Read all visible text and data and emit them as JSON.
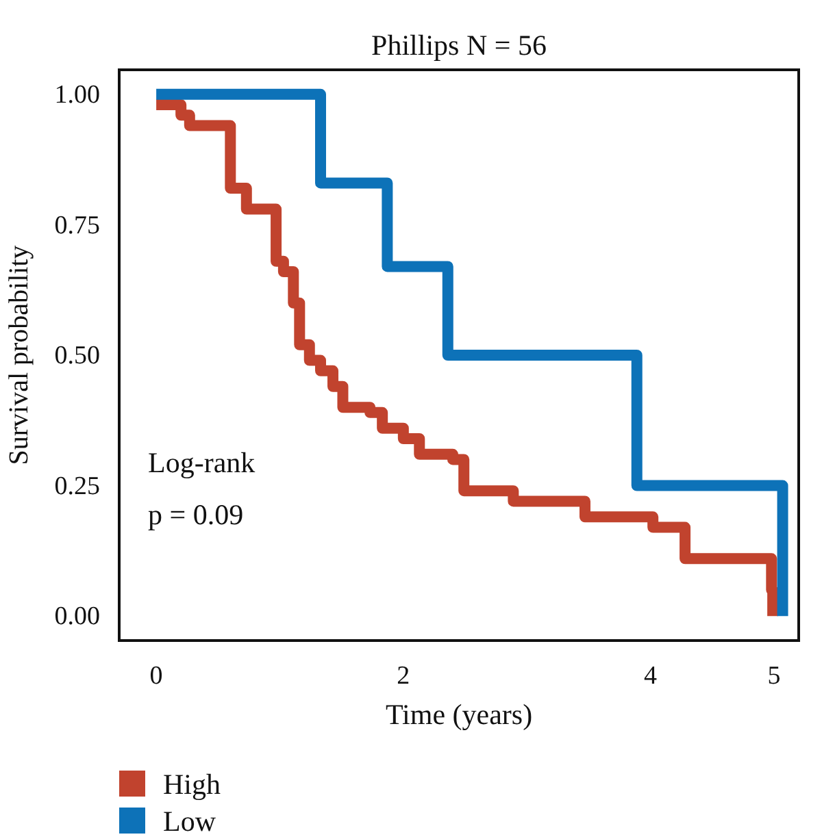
{
  "chart_data": {
    "type": "step",
    "title": "Phillips N = 56",
    "xlabel": "Time (years)",
    "ylabel": "Survival probability",
    "annotations": [
      "Log-rank",
      "p = 0.09"
    ],
    "xlim": [
      -0.3,
      5.2
    ],
    "xticks": [
      0,
      2,
      4,
      5
    ],
    "ylim": [
      -0.047,
      1.047
    ],
    "yticks": [
      {
        "value": 0,
        "label": "0.00"
      },
      {
        "value": 0.25,
        "label": "0.25"
      },
      {
        "value": 0.5,
        "label": "0.50"
      },
      {
        "value": 0.75,
        "label": "0.75"
      },
      {
        "value": 1,
        "label": "1.00"
      }
    ],
    "grid": false,
    "legend": "bottom left",
    "marker": "none",
    "line_style": "solid",
    "series": [
      {
        "name": "High",
        "color": "#c1432e",
        "x": [
          0,
          0.2,
          0.27,
          0.6,
          0.73,
          0.97,
          1.03,
          1.11,
          1.16,
          1.24,
          1.33,
          1.43,
          1.51,
          1.73,
          1.83,
          2.0,
          2.13,
          2.4,
          2.49,
          2.89,
          3.47,
          4.02,
          4.28,
          4.98,
          4.99
        ],
        "values": [
          0.98,
          0.96,
          0.94,
          0.82,
          0.78,
          0.68,
          0.66,
          0.6,
          0.52,
          0.49,
          0.47,
          0.44,
          0.4,
          0.39,
          0.36,
          0.34,
          0.31,
          0.3,
          0.24,
          0.22,
          0.19,
          0.17,
          0.11,
          0.05,
          0
        ]
      },
      {
        "name": "Low",
        "color": "#0d72b8",
        "x": [
          0,
          1.33,
          1.87,
          2.36,
          3.89,
          5.07
        ],
        "values": [
          1,
          0.83,
          0.67,
          0.5,
          0.25,
          0
        ]
      }
    ]
  }
}
